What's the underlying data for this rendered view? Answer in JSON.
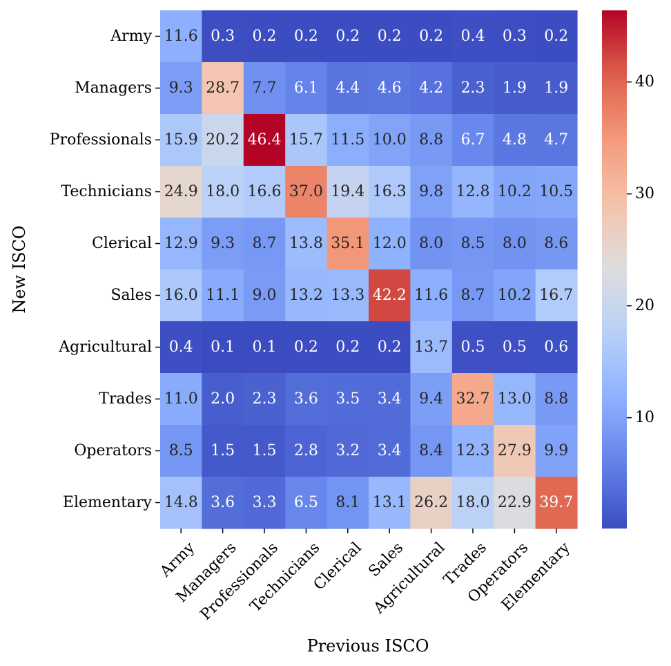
{
  "chart_data": {
    "type": "heatmap",
    "xlabel": "Previous ISCO",
    "ylabel": "New ISCO",
    "x_categories": [
      "Army",
      "Managers",
      "Professionals",
      "Technicians",
      "Clerical",
      "Sales",
      "Agricultural",
      "Trades",
      "Operators",
      "Elementary"
    ],
    "y_categories": [
      "Army",
      "Managers",
      "Professionals",
      "Technicians",
      "Clerical",
      "Sales",
      "Agricultural",
      "Trades",
      "Operators",
      "Elementary"
    ],
    "values": [
      [
        11.6,
        0.3,
        0.2,
        0.2,
        0.2,
        0.2,
        0.2,
        0.4,
        0.3,
        0.2
      ],
      [
        9.3,
        28.7,
        7.7,
        6.1,
        4.4,
        4.6,
        4.2,
        2.3,
        1.9,
        1.9
      ],
      [
        15.9,
        20.2,
        46.4,
        15.7,
        11.5,
        10.0,
        8.8,
        6.7,
        4.8,
        4.7
      ],
      [
        24.9,
        18.0,
        16.6,
        37.0,
        19.4,
        16.3,
        9.8,
        12.8,
        10.2,
        10.5
      ],
      [
        12.9,
        9.3,
        8.7,
        13.8,
        35.1,
        12.0,
        8.0,
        8.5,
        8.0,
        8.6
      ],
      [
        16.0,
        11.1,
        9.0,
        13.2,
        13.3,
        42.2,
        11.6,
        8.7,
        10.2,
        16.7
      ],
      [
        0.4,
        0.1,
        0.1,
        0.2,
        0.2,
        0.2,
        13.7,
        0.5,
        0.5,
        0.6
      ],
      [
        11.0,
        2.0,
        2.3,
        3.6,
        3.5,
        3.4,
        9.4,
        32.7,
        13.0,
        8.8
      ],
      [
        8.5,
        1.5,
        1.5,
        2.8,
        3.2,
        3.4,
        8.4,
        12.3,
        27.9,
        9.9
      ],
      [
        14.8,
        3.6,
        3.3,
        6.5,
        8.1,
        13.1,
        26.2,
        18.0,
        22.9,
        39.7
      ]
    ],
    "vmin": 0.1,
    "vmax": 46.4,
    "colormap": "coolwarm",
    "colorbar_ticks": [
      10,
      20,
      30,
      40
    ],
    "annotations_format": "0.1f"
  }
}
